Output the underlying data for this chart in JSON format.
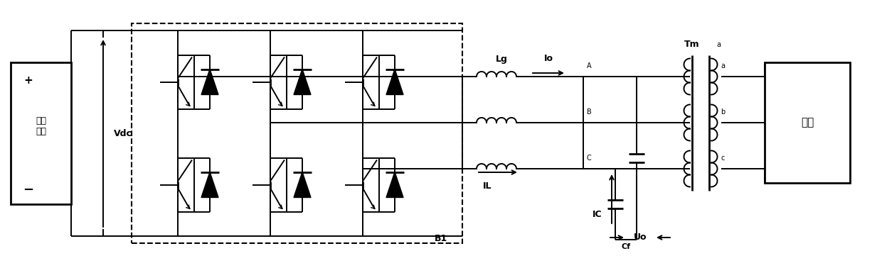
{
  "bg_color": "#ffffff",
  "fig_width": 12.4,
  "fig_height": 3.78,
  "dpi": 100,
  "battery_label": "储能\n电池",
  "vdc_label": "Vdc",
  "b1_label": "B1",
  "lg_label": "Lg",
  "io_label": "Io",
  "il_label": "IL",
  "ic_label": "IC",
  "cf_label": "Cf",
  "uo_label": "Uo",
  "tm_label": "Tm",
  "load_label": "负载",
  "phase_A": "A",
  "phase_B": "B",
  "phase_C": "C",
  "phase_a": "a",
  "phase_b": "b",
  "phase_c": "c"
}
